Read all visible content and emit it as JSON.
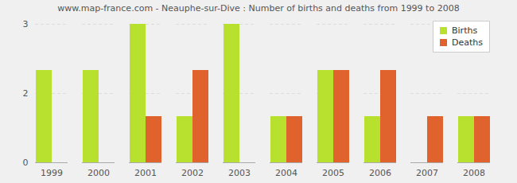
{
  "chart_data": {
    "type": "bar",
    "title": "www.map-france.com - Neauphe-sur-Dive : Number of births and deaths from 1999 to 2008",
    "categories": [
      "1999",
      "2000",
      "2001",
      "2002",
      "2003",
      "2004",
      "2005",
      "2006",
      "2007",
      "2008"
    ],
    "series": [
      {
        "name": "Births",
        "color": "#b8e02f",
        "values": [
          2,
          2,
          3,
          1,
          3,
          1,
          2,
          1,
          0,
          1
        ]
      },
      {
        "name": "Deaths",
        "color": "#e0622d",
        "values": [
          0,
          0,
          1,
          2,
          0,
          1,
          2,
          2,
          1,
          1
        ]
      }
    ],
    "ylim": [
      0,
      3
    ],
    "yticks": [
      0,
      {
        "value": 1.5,
        "label": "2"
      },
      3
    ],
    "grid": true,
    "legend": "top-right"
  }
}
